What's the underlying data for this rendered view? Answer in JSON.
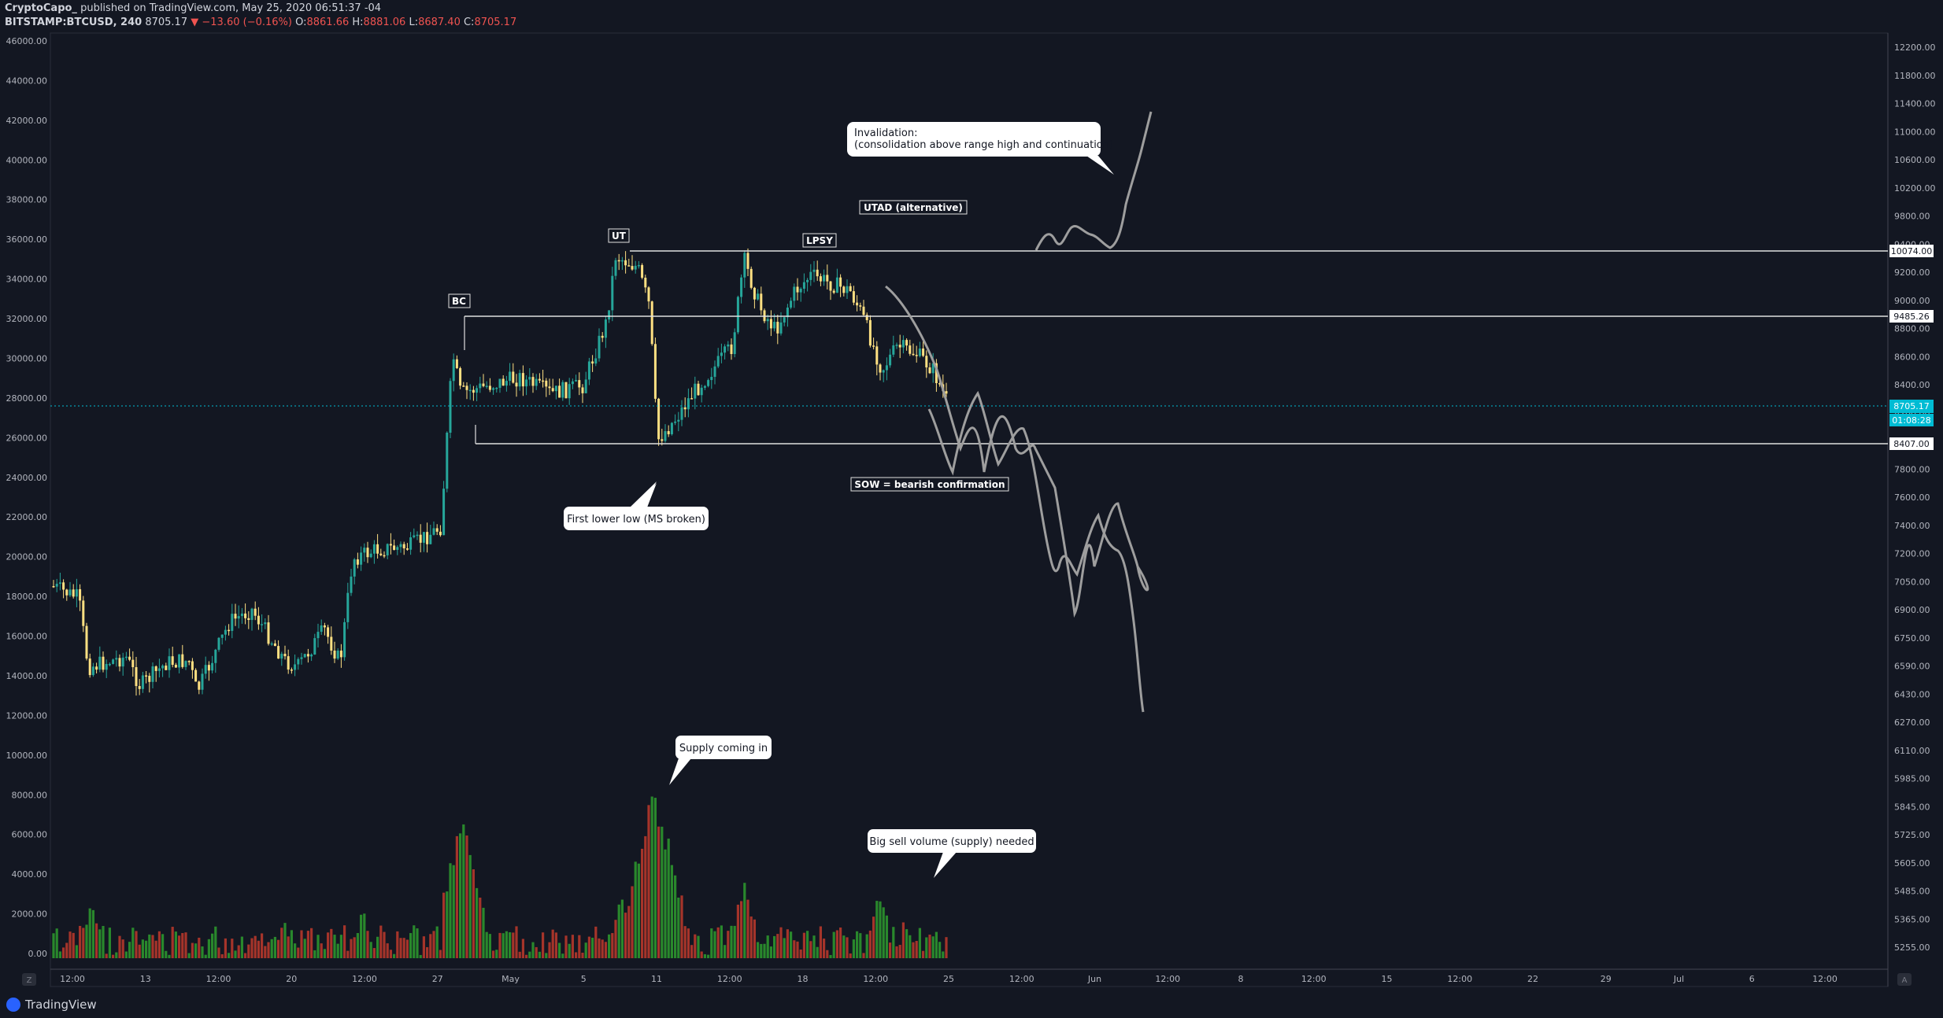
{
  "header": {
    "author": "CryptoCapo_",
    "published": "published on TradingView.com, May 25, 2020 06:51:37 -04",
    "symbol": "BITSTAMP:BTCUSD, 240",
    "last": "8705.17",
    "change": "−13.60 (−0.16%)",
    "o_label": "O:",
    "o_value": "8861.66",
    "h_label": "H:",
    "h_value": "8881.06",
    "l_label": "L:",
    "l_value": "8687.40",
    "c_label": "C:",
    "c_value": "8705.17"
  },
  "left_axis": [
    "46000.00",
    "44000.00",
    "42000.00",
    "40000.00",
    "38000.00",
    "36000.00",
    "34000.00",
    "32000.00",
    "30000.00",
    "28000.00",
    "26000.00",
    "24000.00",
    "22000.00",
    "20000.00",
    "18000.00",
    "16000.00",
    "14000.00",
    "12000.00",
    "10000.00",
    "8000.00",
    "6000.00",
    "4000.00",
    "2000.00",
    "0.00"
  ],
  "right_axis": [
    "12200.00",
    "11800.00",
    "11400.00",
    "11000.00",
    "10600.00",
    "10200.00",
    "9800.00",
    "9400.00",
    "9200.00",
    "9000.00",
    "8800.00",
    "8600.00",
    "8400.00",
    "8200.00",
    "8000.00",
    "7800.00",
    "7600.00",
    "7400.00",
    "7200.00",
    "7050.00",
    "6900.00",
    "6750.00",
    "6590.00",
    "6430.00",
    "6270.00",
    "6110.00",
    "5985.00",
    "5845.00",
    "5725.00",
    "5605.00",
    "5485.00",
    "5365.00",
    "5255.00"
  ],
  "price_tags": {
    "upper": "10074.00",
    "mid": "9485.26",
    "current": "8705.17",
    "countdown": "01:08:28",
    "lower": "8407.00"
  },
  "time_axis": [
    "12:00",
    "13",
    "12:00",
    "20",
    "12:00",
    "27",
    "May",
    "5",
    "11",
    "12:00",
    "18",
    "12:00",
    "25",
    "12:00",
    "Jun",
    "12:00",
    "8",
    "12:00",
    "15",
    "12:00",
    "22",
    "29",
    "Jul",
    "6",
    "12:00"
  ],
  "annotations": {
    "bc": "BC",
    "ut": "UT",
    "lpsy": "LPSY",
    "utad": "UTAD (alternative)",
    "sow": "SOW = bearish confirmation",
    "first_lower_low": "First lower low (MS broken)",
    "invalidation_line1": "Invalidation:",
    "invalidation_line2": "(consolidation above range high and continuation)",
    "supply": "Supply coming in",
    "big_sell": "Big sell volume (supply) needed"
  },
  "footer": {
    "brand": "TradingView",
    "z_button": "Z",
    "a_button": "A"
  },
  "colors": {
    "background": "#131722",
    "bull": "#26a69a",
    "bear": "#ffe082",
    "vol_bull": "#2e9c2e",
    "vol_bear": "#c0392b",
    "projection": "#9e9e9e",
    "current_price": "#00bcd4"
  }
}
